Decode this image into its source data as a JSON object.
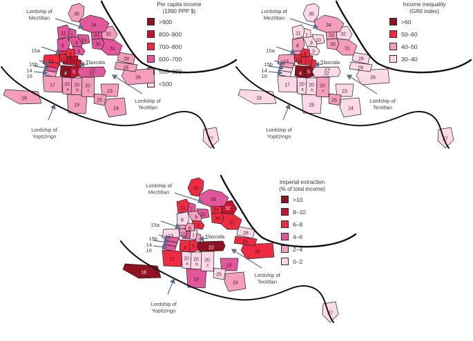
{
  "figure": {
    "background": "#ffffff",
    "palette": {
      "c1": "#8e1222",
      "c2": "#c6132f",
      "c3": "#ee2b40",
      "c4": "#e2579c",
      "c5": "#f49dbc",
      "c6": "#fbd9e6"
    },
    "region_fill_none": "#ffffff",
    "region_border_color": "#222222",
    "coast_color": "#111111",
    "arrow_color": "#5b6e8d",
    "label_color": "#3a3a3a",
    "number_color": "#4a1620",
    "number_color_light": "#ffffff"
  },
  "labels": {
    "meztitlan": "Lordship of Meztitlan",
    "tlaxcala": "Tlaxcala",
    "teotitlan": "Lordship of Teotitlan",
    "yopitzingo": "Lordship of Yopitzingo",
    "r15a": "15a",
    "r15b": "15b",
    "r14": "14",
    "r16": "16",
    "r21": "21"
  },
  "maps": [
    {
      "id": "income",
      "legend": {
        "title_line1": "Per capita income",
        "title_line2": "(1990 PPP $)",
        "items": [
          {
            "label": ">900",
            "class": "c1"
          },
          {
            "label": "800–900",
            "class": "c2"
          },
          {
            "label": "700–800",
            "class": "c3"
          },
          {
            "label": "600–700",
            "class": "c4"
          },
          {
            "label": "500–600",
            "class": "c5"
          },
          {
            "label": "<500",
            "class": "c6"
          }
        ]
      },
      "region_classes": {
        "1": "c2",
        "2": "c2",
        "3": "c4",
        "4": "c1",
        "5": "c2",
        "6": "c3",
        "7": "c4",
        "8": "c4",
        "9": "c4",
        "10": "c4",
        "11": "c4",
        "12": "c3",
        "13": "c3",
        "14": "c4",
        "15a": "c3",
        "15b": "c3",
        "16": "c5",
        "17": "c5",
        "18": "c5",
        "19": "c5",
        "20a": "c5",
        "20b": "c5",
        "20c": "c5",
        "21": "c2",
        "22": "c4",
        "23": "c5",
        "24": "c5",
        "25": "c5",
        "26": "c5",
        "27": "c6",
        "28": "c5",
        "29": "c5",
        "30": "c4",
        "31": "c4",
        "32": "c5",
        "33": "c4",
        "34": "c4",
        "35": "c5"
      },
      "light_text_regions": [
        "4",
        "5"
      ]
    },
    {
      "id": "gini",
      "legend": {
        "title_line1": "Income inequality",
        "title_line2": "(GINI index)",
        "items": [
          {
            "label": ">60",
            "class": "c1"
          },
          {
            "label": "50–60",
            "class": "c3"
          },
          {
            "label": "40–50",
            "class": "c5"
          },
          {
            "label": "30–40",
            "class": "c6"
          }
        ]
      },
      "region_classes": {
        "1": "c3",
        "2": "c3",
        "3": "c6",
        "4": "c1",
        "5": "c1",
        "6": "c3",
        "7": "c6",
        "8": "c5",
        "9": "c6",
        "10": "c6",
        "11": "c6",
        "12": "c3",
        "13": "c5",
        "14": "c6",
        "15a": "c5",
        "15b": "c5",
        "16": "c6",
        "17": "c6",
        "18": "c6",
        "19": "c6",
        "20a": "c6",
        "20b": "c6",
        "20c": "c5",
        "21": "c3",
        "22": "c6",
        "23": "c6",
        "24": "c6",
        "25": "c5",
        "26": "c6",
        "27": "c6",
        "28": "c6",
        "29": "c6",
        "30": "c5",
        "31": "c5",
        "32": "c6",
        "33": "c5",
        "34": "c5",
        "35": "c6"
      },
      "light_text_regions": [
        "4",
        "5"
      ]
    },
    {
      "id": "extraction",
      "legend": {
        "title_line1": "Imperial extraction",
        "title_line2": "(% of total income)",
        "items": [
          {
            "label": ">10",
            "class": "c1"
          },
          {
            "label": "8–10",
            "class": "c2"
          },
          {
            "label": "6–8",
            "class": "c3"
          },
          {
            "label": "4–6",
            "class": "c4"
          },
          {
            "label": "2–4",
            "class": "c5"
          },
          {
            "label": "0–2",
            "class": "c6"
          }
        ]
      },
      "region_classes": {
        "1": "c6",
        "2": "c4",
        "3": "c3",
        "4": "c3",
        "5": "c3",
        "6": "c5",
        "7": "c4",
        "8": "c6",
        "9": "c5",
        "10": "c4",
        "11": "c3",
        "12": "c5",
        "13": "c6",
        "14": "c4",
        "15a": "c5",
        "15b": "c4",
        "16": "c4",
        "17": "c3",
        "18": "c1",
        "19": "c4",
        "20a": "c6",
        "20b": "c6",
        "20c": "c6",
        "21": "c5",
        "22": "c1",
        "23": "c4",
        "24": "c5",
        "25": "c6",
        "26": "c3",
        "27": "c6",
        "28": "c6",
        "29": "c3",
        "30": "c3",
        "31": "c3",
        "32": "c2",
        "33": "c3",
        "34": "c4",
        "35": "c3"
      },
      "light_text_regions": [
        "18",
        "22",
        "32"
      ]
    }
  ]
}
